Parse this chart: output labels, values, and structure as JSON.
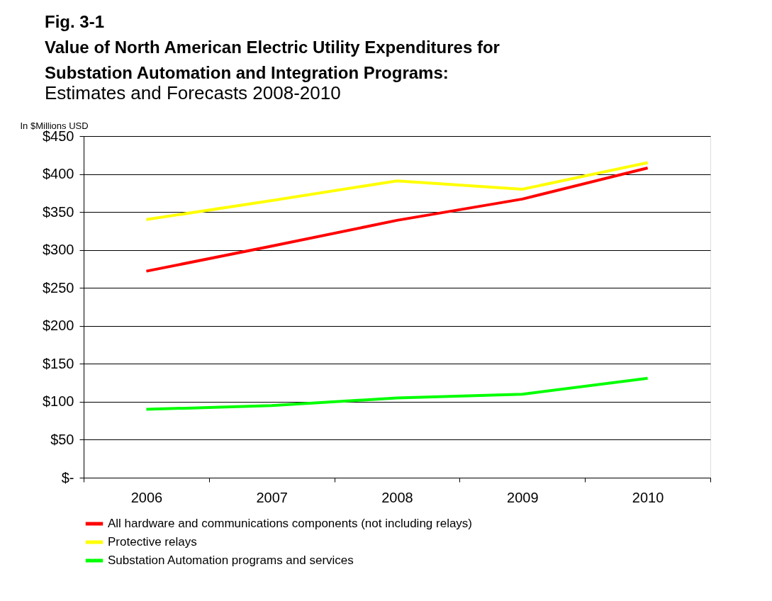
{
  "chart_data": {
    "type": "line",
    "title": "Fig. 3-1\nValue of North American Electric Utility Expenditures for\nSubstation Automation and Integration Programs:",
    "subtitle": "Estimates and Forecasts 2008-2010",
    "ylabel": "In $Millions USD",
    "categories": [
      "2006",
      "2007",
      "2008",
      "2009",
      "2010"
    ],
    "series": [
      {
        "name": "All hardware and communications components (not including relays)",
        "color": "#ff0000",
        "values": [
          272,
          305,
          339,
          367,
          408
        ]
      },
      {
        "name": "Protective relays",
        "color": "#ffff00",
        "values": [
          340,
          365,
          391,
          380,
          415
        ]
      },
      {
        "name": "Substation Automation programs and services",
        "color": "#00ff00",
        "values": [
          90,
          95,
          105,
          110,
          131
        ]
      }
    ],
    "ylim": [
      0,
      450
    ],
    "yticks": [
      {
        "value": 0,
        "label": "$-"
      },
      {
        "value": 50,
        "label": "$50"
      },
      {
        "value": 100,
        "label": "$100"
      },
      {
        "value": 150,
        "label": "$150"
      },
      {
        "value": 200,
        "label": "$200"
      },
      {
        "value": 250,
        "label": "$250"
      },
      {
        "value": 300,
        "label": "$300"
      },
      {
        "value": 350,
        "label": "$350"
      },
      {
        "value": 400,
        "label": "$400"
      },
      {
        "value": 450,
        "label": "$450"
      }
    ],
    "grid": "y",
    "legend": "bottom",
    "marker": "none",
    "line_style": "solid"
  }
}
